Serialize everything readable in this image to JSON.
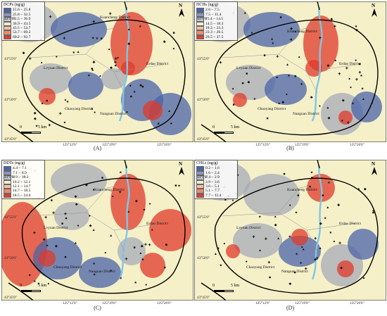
{
  "colors": {
    "background": "#f5f0c8",
    "blue": "#4a64a8",
    "grey": "#a7abb8",
    "red": "#e03a2a",
    "river": "#7fc6e8",
    "boundary": "#000000"
  },
  "panels": [
    {
      "caption": "(A)",
      "legend_title": "DCPs (ng/g)",
      "legend": [
        "15.6 ~ 25.8",
        "25.8 ~ 32.5",
        "32.5 ~ 36.9",
        "36.9 ~ 43.5",
        "43.5 ~ 53.7",
        "53.7 ~ 69.2",
        "69.2 ~ 92.7"
      ],
      "legend_colors": [
        "#4a64a8",
        "#8a97c0",
        "#c3c7d6",
        "#f5f0c8",
        "#f6c3a6",
        "#ef8a6c",
        "#d94030"
      ],
      "districts": [
        "Kuancheng District",
        "Lvyuan District",
        "Erdao District",
        "Chaoyang District",
        "Nanguan District"
      ],
      "latitudes": [
        "44°0'0\"",
        "43°55'0\"",
        "43°50'0\"",
        "43°45'0\""
      ],
      "longitudes": [
        "125°12'0\"",
        "125°19'0\"",
        "125°26'0\""
      ],
      "scale": {
        "zero": "0",
        "five": "5",
        "unit": "km"
      },
      "north": "N"
    },
    {
      "caption": "(B)",
      "legend_title": "HCHs (ng/g)",
      "legend": [
        "2.6 ~ 7.5",
        "7.5 ~ 11.4",
        "11.4 ~ 14.5",
        "14.5 ~ 18.3",
        "18.3 ~ 23.3",
        "23.3 ~ 29.5",
        "29.5 ~ 37.5"
      ],
      "legend_colors": [
        "#4a64a8",
        "#8a97c0",
        "#c3c7d6",
        "#f5f0c8",
        "#f6c3a6",
        "#ef8a6c",
        "#d94030"
      ],
      "districts": [
        "Kuancheng District",
        "Lvyuan District",
        "Erdao District",
        "Chaoyang District",
        "Nanguan District"
      ],
      "latitudes": [
        "44°0'0\"",
        "43°55'0\"",
        "43°50'0\"",
        "43°45'0\""
      ],
      "longitudes": [
        "125°12'0\"",
        "125°19'0\"",
        "125°26'0\""
      ],
      "scale": {
        "zero": "0",
        "five": "5",
        "unit": "km"
      },
      "north": "N"
    },
    {
      "caption": "(C)",
      "legend_title": "DDTs (ng/g)",
      "legend": [
        "4.4 ~ 7.1",
        "7.1 ~ 8.9",
        "8.9 ~ 10.2",
        "10.2 ~ 12.1",
        "12.1 ~ 14.7",
        "14.7 ~ 18.5",
        "18.5 ~ 24.0"
      ],
      "legend_colors": [
        "#4a64a8",
        "#8a97c0",
        "#c3c7d6",
        "#f5f0c8",
        "#f6c3a6",
        "#ef8a6c",
        "#d94030"
      ],
      "districts": [
        "Kuancheng District",
        "Lvyuan District",
        "Erdao District",
        "Chaoyang District",
        "Nanguan District"
      ],
      "latitudes": [
        "44°0'0\"",
        "43°55'0\"",
        "43°50'0\"",
        "43°45'0\""
      ],
      "longitudes": [
        "125°12'0\"",
        "125°19'0\"",
        "125°26'0\""
      ],
      "scale": {
        "zero": "0",
        "five": "5",
        "unit": "km"
      },
      "north": "N"
    },
    {
      "caption": "(D)",
      "legend_title": "CHLs (ng/g)",
      "legend": [
        "0.2 ~ 1.6",
        "1.6 ~ 2.4",
        "2.4 ~ 2.9",
        "2.9 ~ 3.6",
        "3.6 ~ 5.1",
        "5.1 ~ 7.7",
        "7.7 ~ 12.4"
      ],
      "legend_colors": [
        "#4a64a8",
        "#8a97c0",
        "#c3c7d6",
        "#f5f0c8",
        "#f6c3a6",
        "#ef8a6c",
        "#d94030"
      ],
      "districts": [
        "Kuancheng District",
        "Lvyuan District",
        "Erdao District",
        "Chaoyang District",
        "Nanguan District"
      ],
      "latitudes": [
        "44°0'0\"",
        "43°55'0\"",
        "43°50'0\"",
        "43°45'0\""
      ],
      "longitudes": [
        "125°12'0\"",
        "125°19'0\"",
        "125°26'0\""
      ],
      "scale": {
        "zero": "0",
        "five": "5",
        "unit": "km"
      },
      "north": "N"
    }
  ]
}
